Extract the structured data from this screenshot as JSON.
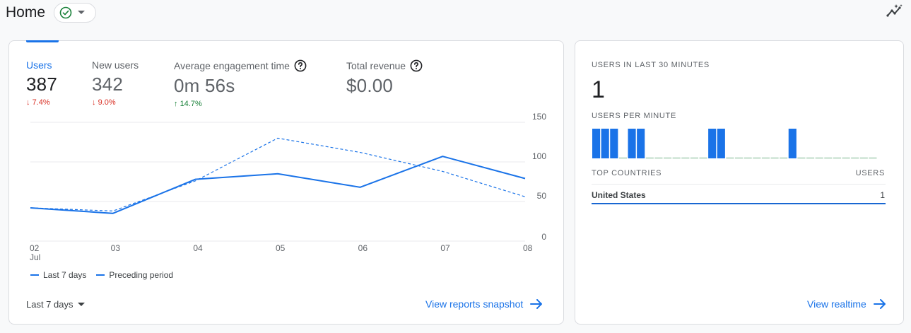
{
  "header": {
    "title": "Home"
  },
  "metrics": [
    {
      "label": "Users",
      "value": "387",
      "change": "7.4%",
      "direction": "down",
      "active": true,
      "help": false
    },
    {
      "label": "New users",
      "value": "342",
      "change": "9.0%",
      "direction": "down",
      "active": false,
      "help": false
    },
    {
      "label": "Average engagement time",
      "value": "0m 56s",
      "change": "14.7%",
      "direction": "up",
      "active": false,
      "help": true
    },
    {
      "label": "Total revenue",
      "value": "$0.00",
      "change": "",
      "direction": "",
      "active": false,
      "help": true
    }
  ],
  "chart_data": {
    "type": "line",
    "x": [
      "02",
      "03",
      "04",
      "05",
      "06",
      "07",
      "08"
    ],
    "x_sublabel_first": "Jul",
    "y_ticks": [
      "150",
      "100",
      "50",
      "0"
    ],
    "ylim": [
      0,
      150
    ],
    "series": [
      {
        "name": "Last 7 days",
        "style": "solid",
        "values": [
          42,
          35,
          78,
          85,
          68,
          107,
          79
        ]
      },
      {
        "name": "Preceding period",
        "style": "dashed",
        "values": [
          42,
          38,
          76,
          130,
          112,
          88,
          56
        ]
      }
    ],
    "grid": true,
    "legend": "bottom-left"
  },
  "footer": {
    "date_range": "Last 7 days",
    "view_link": "View reports snapshot"
  },
  "realtime": {
    "users_label": "USERS IN LAST 30 MINUTES",
    "users_value": "1",
    "per_minute_label": "USERS PER MINUTE",
    "per_minute_bars": [
      0,
      0,
      0,
      0,
      0,
      0,
      0,
      0,
      0,
      1,
      0,
      0,
      0,
      0,
      0,
      0,
      0,
      1,
      1,
      0,
      0,
      0,
      0,
      0,
      0,
      0,
      1,
      1,
      0,
      1,
      1,
      1
    ],
    "top_countries_label": "TOP COUNTRIES",
    "users_column_label": "USERS",
    "countries": [
      {
        "name": "United States",
        "users": "1"
      }
    ],
    "view_link": "View realtime"
  },
  "colors": {
    "accent": "#1a73e8",
    "down": "#d93025",
    "up": "#188038",
    "bar": "#1a73e8"
  }
}
